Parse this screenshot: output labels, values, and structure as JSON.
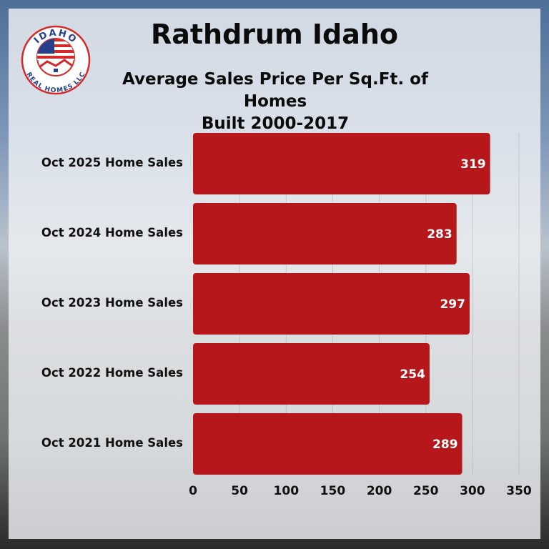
{
  "logo": {
    "top_text": "IDAHO",
    "bottom_text": "REAL HOMES LLC"
  },
  "header": {
    "title": "Rathdrum Idaho",
    "subtitle_line1": "Average Sales Price Per Sq.Ft. of Homes",
    "subtitle_line2": "Built 2000-2017"
  },
  "colors": {
    "bar": "#b5171b",
    "label": "#ffffff"
  },
  "chart_data": {
    "type": "bar",
    "orientation": "horizontal",
    "title": "Rathdrum Idaho",
    "subtitle": "Average Sales Price Per Sq.Ft. of Homes Built 2000-2017",
    "categories": [
      "Oct 2025 Home Sales",
      "Oct 2024 Home Sales",
      "Oct 2023 Home Sales",
      "Oct 2022 Home Sales",
      "Oct 2021 Home Sales"
    ],
    "values": [
      319,
      283,
      297,
      254,
      289
    ],
    "xlim": [
      0,
      350
    ],
    "xticks": [
      "0",
      "50",
      "100",
      "150",
      "200",
      "250",
      "300",
      "350"
    ],
    "grid": true,
    "data_labels": [
      "319",
      "283",
      "297",
      "254",
      "289"
    ]
  }
}
